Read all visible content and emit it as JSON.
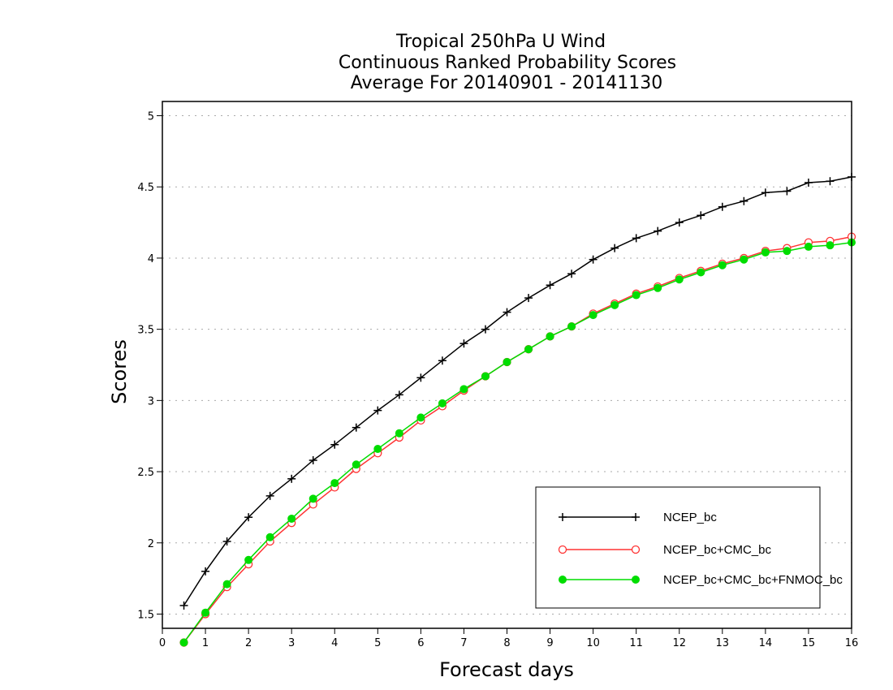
{
  "chart_data": {
    "type": "line",
    "title": [
      "Tropical 250hPa U Wind",
      "Continuous Ranked Probability Scores",
      "Average For 20140901 - 20141130"
    ],
    "xlabel": "Forecast days",
    "ylabel": "Scores",
    "xlim": [
      0,
      16
    ],
    "ylim": [
      1.4,
      5.1
    ],
    "xticks": [
      0,
      1,
      2,
      3,
      4,
      5,
      6,
      7,
      8,
      9,
      10,
      11,
      12,
      13,
      14,
      15,
      16
    ],
    "yticks": [
      1.5,
      2,
      2.5,
      3,
      3.5,
      4,
      4.5,
      5
    ],
    "ytick_labels": [
      "1.5",
      "2",
      "2.5",
      "3",
      "3.5",
      "4",
      "4.5",
      "5"
    ],
    "grid": "horizontal dotted",
    "legend_position": "bottom-right",
    "x": [
      0.5,
      1,
      1.5,
      2,
      2.5,
      3,
      3.5,
      4,
      4.5,
      5,
      5.5,
      6,
      6.5,
      7,
      7.5,
      8,
      8.5,
      9,
      9.5,
      10,
      10.5,
      11,
      11.5,
      12,
      12.5,
      13,
      13.5,
      14,
      14.5,
      15,
      15.5,
      16
    ],
    "series": [
      {
        "name": "NCEP_bc",
        "color": "#000000",
        "marker": "plus",
        "values": [
          1.56,
          1.8,
          2.01,
          2.18,
          2.33,
          2.45,
          2.58,
          2.69,
          2.81,
          2.93,
          3.04,
          3.16,
          3.28,
          3.4,
          3.5,
          3.62,
          3.72,
          3.81,
          3.89,
          3.99,
          4.07,
          4.14,
          4.19,
          4.25,
          4.3,
          4.36,
          4.4,
          4.46,
          4.47,
          4.53,
          4.54,
          4.57
        ]
      },
      {
        "name": "NCEP_bc+CMC_bc",
        "color": "#ff3333",
        "marker": "open-circle",
        "values": [
          1.3,
          1.5,
          1.69,
          1.85,
          2.01,
          2.14,
          2.27,
          2.39,
          2.52,
          2.63,
          2.74,
          2.86,
          2.96,
          3.07,
          3.17,
          3.27,
          3.36,
          3.45,
          3.52,
          3.61,
          3.68,
          3.75,
          3.8,
          3.86,
          3.91,
          3.96,
          4.0,
          4.05,
          4.07,
          4.11,
          4.12,
          4.15
        ]
      },
      {
        "name": "NCEP_bc+CMC_bc+FNMOC_bc",
        "color": "#00dd00",
        "marker": "filled-circle",
        "values": [
          1.3,
          1.51,
          1.71,
          1.88,
          2.04,
          2.17,
          2.31,
          2.42,
          2.55,
          2.66,
          2.77,
          2.88,
          2.98,
          3.08,
          3.17,
          3.27,
          3.36,
          3.45,
          3.52,
          3.6,
          3.67,
          3.74,
          3.79,
          3.85,
          3.9,
          3.95,
          3.99,
          4.04,
          4.05,
          4.08,
          4.09,
          4.11
        ]
      }
    ]
  }
}
